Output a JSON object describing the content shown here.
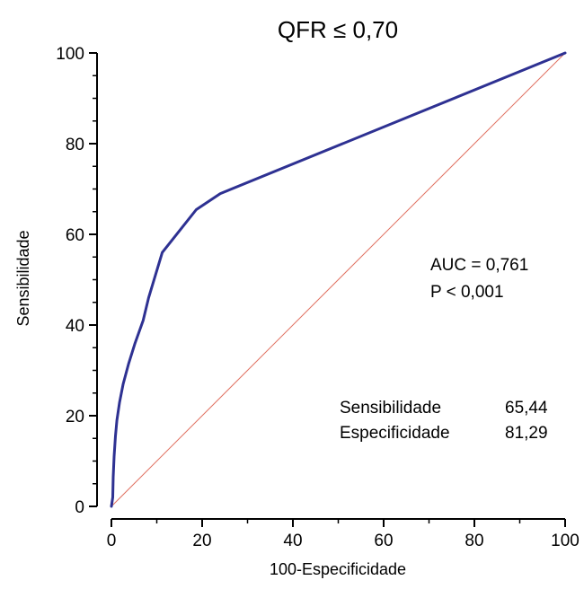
{
  "chart_data": {
    "type": "line",
    "title": "QFR ≤ 0,70",
    "xlabel": "100-Especificidade",
    "ylabel": "Sensibilidade",
    "xlim": [
      0,
      100
    ],
    "ylim": [
      0,
      100
    ],
    "x_ticks": [
      0,
      20,
      40,
      60,
      80,
      100
    ],
    "y_ticks": [
      0,
      20,
      40,
      60,
      80,
      100
    ],
    "x_tick_labels": [
      "0",
      "20",
      "40",
      "60",
      "80",
      "100"
    ],
    "y_tick_labels": [
      "0",
      "20",
      "40",
      "60",
      "80",
      "100"
    ],
    "grid": false,
    "series": [
      {
        "role": "roc-curve",
        "color": "#2e3192",
        "x": [
          0,
          0.3,
          0.4,
          0.6,
          0.9,
          1.2,
          1.8,
          2.6,
          3.8,
          5.2,
          7.0,
          8.2,
          11.2,
          18.7,
          24.0,
          100
        ],
        "y": [
          0,
          2.0,
          6.5,
          11.0,
          15.5,
          19.0,
          23.0,
          27.0,
          31.5,
          36.0,
          41.0,
          46.0,
          56.0,
          65.44,
          69.0,
          100
        ]
      },
      {
        "role": "reference-diagonal",
        "color": "#e07060",
        "x": [
          0,
          100
        ],
        "y": [
          0,
          100
        ]
      }
    ],
    "annotations": {
      "auc": "AUC = 0,761",
      "p_value": "P < 0,001",
      "sens_label": "Sensibilidade",
      "sens_value": "65,44",
      "spec_label": "Especificidade",
      "spec_value": "81,29"
    }
  }
}
